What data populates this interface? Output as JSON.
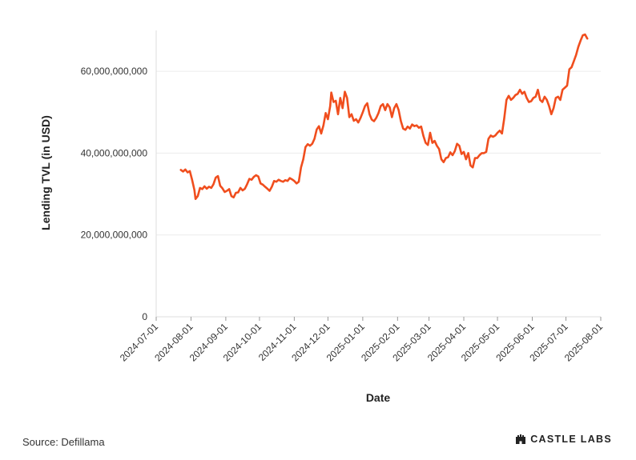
{
  "chart_data": {
    "type": "line",
    "xlabel": "Date",
    "ylabel": "Lending TVL (in USD)",
    "x_tick_labels": [
      "2024-07-01",
      "2024-08-01",
      "2024-09-01",
      "2024-10-01",
      "2024-11-01",
      "2024-12-01",
      "2025-01-01",
      "2025-02-01",
      "2025-03-01",
      "2025-04-01",
      "2025-05-01",
      "2025-06-01",
      "2025-07-01",
      "2025-08-01"
    ],
    "y_ticks": [
      0,
      20000000000,
      40000000000,
      60000000000
    ],
    "y_tick_labels": [
      "0",
      "20,000,000,000",
      "40,000,000,000",
      "60,000,000,000"
    ],
    "xlim": [
      "2024-07-01",
      "2025-08-01"
    ],
    "ylim": [
      0,
      70000000000
    ],
    "grid": "horizontal",
    "series": [
      {
        "color": "#f04e1e",
        "points": [
          [
            "2024-07-23",
            35.9
          ],
          [
            "2024-07-25",
            35.5
          ],
          [
            "2024-07-27",
            36.0
          ],
          [
            "2024-07-29",
            35.3
          ],
          [
            "2024-07-31",
            35.6
          ],
          [
            "2024-08-02",
            33.5
          ],
          [
            "2024-08-04",
            31.0
          ],
          [
            "2024-08-05",
            28.8
          ],
          [
            "2024-08-07",
            29.5
          ],
          [
            "2024-08-09",
            31.5
          ],
          [
            "2024-08-11",
            31.2
          ],
          [
            "2024-08-13",
            31.9
          ],
          [
            "2024-08-15",
            31.3
          ],
          [
            "2024-08-17",
            31.8
          ],
          [
            "2024-08-19",
            31.5
          ],
          [
            "2024-08-21",
            32.4
          ],
          [
            "2024-08-23",
            34.0
          ],
          [
            "2024-08-25",
            34.4
          ],
          [
            "2024-08-27",
            32.0
          ],
          [
            "2024-08-29",
            31.4
          ],
          [
            "2024-08-31",
            30.5
          ],
          [
            "2024-09-02",
            30.8
          ],
          [
            "2024-09-04",
            31.2
          ],
          [
            "2024-09-06",
            29.5
          ],
          [
            "2024-09-08",
            29.2
          ],
          [
            "2024-09-10",
            30.3
          ],
          [
            "2024-09-12",
            30.4
          ],
          [
            "2024-09-14",
            31.5
          ],
          [
            "2024-09-16",
            30.9
          ],
          [
            "2024-09-18",
            31.3
          ],
          [
            "2024-09-20",
            32.4
          ],
          [
            "2024-09-22",
            33.7
          ],
          [
            "2024-09-24",
            33.5
          ],
          [
            "2024-09-26",
            34.2
          ],
          [
            "2024-09-28",
            34.6
          ],
          [
            "2024-09-30",
            34.3
          ],
          [
            "2024-10-02",
            32.6
          ],
          [
            "2024-10-04",
            32.3
          ],
          [
            "2024-10-06",
            31.8
          ],
          [
            "2024-10-08",
            31.3
          ],
          [
            "2024-10-10",
            30.8
          ],
          [
            "2024-10-12",
            31.8
          ],
          [
            "2024-10-14",
            33.2
          ],
          [
            "2024-10-16",
            33.0
          ],
          [
            "2024-10-18",
            33.5
          ],
          [
            "2024-10-20",
            33.2
          ],
          [
            "2024-10-22",
            33.0
          ],
          [
            "2024-10-24",
            33.4
          ],
          [
            "2024-10-26",
            33.2
          ],
          [
            "2024-10-28",
            33.9
          ],
          [
            "2024-10-30",
            33.6
          ],
          [
            "2024-11-01",
            33.2
          ],
          [
            "2024-11-03",
            32.6
          ],
          [
            "2024-11-05",
            33.0
          ],
          [
            "2024-11-07",
            36.5
          ],
          [
            "2024-11-09",
            38.5
          ],
          [
            "2024-11-11",
            41.5
          ],
          [
            "2024-11-13",
            42.2
          ],
          [
            "2024-11-15",
            41.8
          ],
          [
            "2024-11-17",
            42.3
          ],
          [
            "2024-11-19",
            43.5
          ],
          [
            "2024-11-21",
            45.8
          ],
          [
            "2024-11-23",
            46.6
          ],
          [
            "2024-11-25",
            44.8
          ],
          [
            "2024-11-27",
            46.8
          ],
          [
            "2024-11-29",
            49.8
          ],
          [
            "2024-12-01",
            48.3
          ],
          [
            "2024-12-03",
            51.5
          ],
          [
            "2024-12-04",
            54.8
          ],
          [
            "2024-12-06",
            52.5
          ],
          [
            "2024-12-08",
            52.8
          ],
          [
            "2024-12-10",
            49.5
          ],
          [
            "2024-12-12",
            53.5
          ],
          [
            "2024-12-14",
            51.0
          ],
          [
            "2024-12-16",
            55.0
          ],
          [
            "2024-12-18",
            53.5
          ],
          [
            "2024-12-20",
            48.8
          ],
          [
            "2024-12-22",
            49.5
          ],
          [
            "2024-12-24",
            47.9
          ],
          [
            "2024-12-26",
            48.3
          ],
          [
            "2024-12-28",
            47.5
          ],
          [
            "2024-12-30",
            48.6
          ],
          [
            "2025-01-01",
            50.0
          ],
          [
            "2025-01-03",
            51.5
          ],
          [
            "2025-01-05",
            52.2
          ],
          [
            "2025-01-07",
            49.5
          ],
          [
            "2025-01-09",
            48.2
          ],
          [
            "2025-01-11",
            47.8
          ],
          [
            "2025-01-13",
            48.6
          ],
          [
            "2025-01-15",
            49.8
          ],
          [
            "2025-01-17",
            51.5
          ],
          [
            "2025-01-19",
            52.0
          ],
          [
            "2025-01-21",
            50.5
          ],
          [
            "2025-01-23",
            52.0
          ],
          [
            "2025-01-25",
            51.2
          ],
          [
            "2025-01-27",
            48.8
          ],
          [
            "2025-01-29",
            51.0
          ],
          [
            "2025-01-31",
            52.0
          ],
          [
            "2025-02-02",
            50.5
          ],
          [
            "2025-02-04",
            47.8
          ],
          [
            "2025-02-06",
            46.0
          ],
          [
            "2025-02-08",
            45.7
          ],
          [
            "2025-02-10",
            46.5
          ],
          [
            "2025-02-12",
            46.0
          ],
          [
            "2025-02-14",
            47.0
          ],
          [
            "2025-02-16",
            46.6
          ],
          [
            "2025-02-18",
            46.8
          ],
          [
            "2025-02-20",
            46.2
          ],
          [
            "2025-02-22",
            46.5
          ],
          [
            "2025-02-24",
            44.2
          ],
          [
            "2025-02-26",
            42.5
          ],
          [
            "2025-02-28",
            42.0
          ],
          [
            "2025-03-02",
            45.0
          ],
          [
            "2025-03-04",
            42.5
          ],
          [
            "2025-03-06",
            43.0
          ],
          [
            "2025-03-08",
            41.8
          ],
          [
            "2025-03-10",
            41.0
          ],
          [
            "2025-03-12",
            38.5
          ],
          [
            "2025-03-14",
            37.8
          ],
          [
            "2025-03-16",
            38.8
          ],
          [
            "2025-03-18",
            39.0
          ],
          [
            "2025-03-20",
            40.2
          ],
          [
            "2025-03-22",
            39.5
          ],
          [
            "2025-03-24",
            40.5
          ],
          [
            "2025-03-26",
            42.3
          ],
          [
            "2025-03-28",
            41.8
          ],
          [
            "2025-03-30",
            39.8
          ],
          [
            "2025-04-01",
            40.3
          ],
          [
            "2025-04-03",
            38.5
          ],
          [
            "2025-04-05",
            40.0
          ],
          [
            "2025-04-07",
            37.0
          ],
          [
            "2025-04-09",
            36.5
          ],
          [
            "2025-04-11",
            38.8
          ],
          [
            "2025-04-13",
            38.8
          ],
          [
            "2025-04-15",
            39.5
          ],
          [
            "2025-04-17",
            40.0
          ],
          [
            "2025-04-19",
            40.0
          ],
          [
            "2025-04-21",
            40.3
          ],
          [
            "2025-04-23",
            43.5
          ],
          [
            "2025-04-25",
            44.3
          ],
          [
            "2025-04-27",
            44.0
          ],
          [
            "2025-04-29",
            44.3
          ],
          [
            "2025-05-01",
            45.0
          ],
          [
            "2025-05-03",
            45.5
          ],
          [
            "2025-05-05",
            44.8
          ],
          [
            "2025-05-07",
            48.5
          ],
          [
            "2025-05-09",
            53.0
          ],
          [
            "2025-05-11",
            54.0
          ],
          [
            "2025-05-13",
            53.0
          ],
          [
            "2025-05-15",
            53.5
          ],
          [
            "2025-05-17",
            54.2
          ],
          [
            "2025-05-19",
            54.5
          ],
          [
            "2025-05-21",
            55.5
          ],
          [
            "2025-05-23",
            54.5
          ],
          [
            "2025-05-25",
            55.0
          ],
          [
            "2025-05-27",
            53.5
          ],
          [
            "2025-05-29",
            52.5
          ],
          [
            "2025-05-31",
            52.7
          ],
          [
            "2025-06-02",
            53.5
          ],
          [
            "2025-06-04",
            53.8
          ],
          [
            "2025-06-06",
            55.5
          ],
          [
            "2025-06-08",
            53.0
          ],
          [
            "2025-06-10",
            52.5
          ],
          [
            "2025-06-12",
            53.8
          ],
          [
            "2025-06-14",
            53.0
          ],
          [
            "2025-06-16",
            51.5
          ],
          [
            "2025-06-18",
            49.5
          ],
          [
            "2025-06-20",
            51.0
          ],
          [
            "2025-06-22",
            53.5
          ],
          [
            "2025-06-24",
            53.8
          ],
          [
            "2025-06-26",
            53.0
          ],
          [
            "2025-06-28",
            55.5
          ],
          [
            "2025-06-30",
            56.0
          ],
          [
            "2025-07-02",
            56.5
          ],
          [
            "2025-07-04",
            60.5
          ],
          [
            "2025-07-06",
            61.0
          ],
          [
            "2025-07-08",
            62.5
          ],
          [
            "2025-07-10",
            64.0
          ],
          [
            "2025-07-12",
            66.0
          ],
          [
            "2025-07-14",
            67.5
          ],
          [
            "2025-07-16",
            68.8
          ],
          [
            "2025-07-18",
            69.0
          ],
          [
            "2025-07-20",
            68.0
          ]
        ]
      }
    ]
  },
  "footer": {
    "source": "Source: Defillama",
    "brand": "CASTLE LABS",
    "brand_icon": "castle-icon"
  }
}
